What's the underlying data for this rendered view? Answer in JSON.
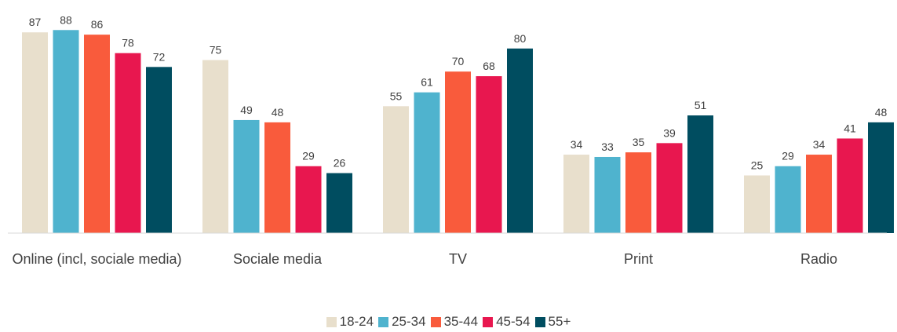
{
  "chart_data": {
    "type": "bar",
    "categories": [
      "Online (incl, sociale media)",
      "Sociale media",
      "TV",
      "Print",
      "Radio"
    ],
    "series": [
      {
        "name": "18-24",
        "color": "#e8dfcc",
        "values": [
          87,
          75,
          55,
          34,
          25
        ]
      },
      {
        "name": "25-34",
        "color": "#4fb3ce",
        "values": [
          88,
          49,
          61,
          33,
          29
        ]
      },
      {
        "name": "35-44",
        "color": "#f95b3c",
        "values": [
          86,
          48,
          70,
          35,
          34
        ]
      },
      {
        "name": "45-54",
        "color": "#e8174f",
        "values": [
          78,
          29,
          68,
          39,
          41
        ]
      },
      {
        "name": "55+",
        "color": "#004d60",
        "values": [
          72,
          26,
          80,
          51,
          48
        ]
      }
    ],
    "ylim": [
      0,
      100
    ],
    "legend": "bottom"
  }
}
